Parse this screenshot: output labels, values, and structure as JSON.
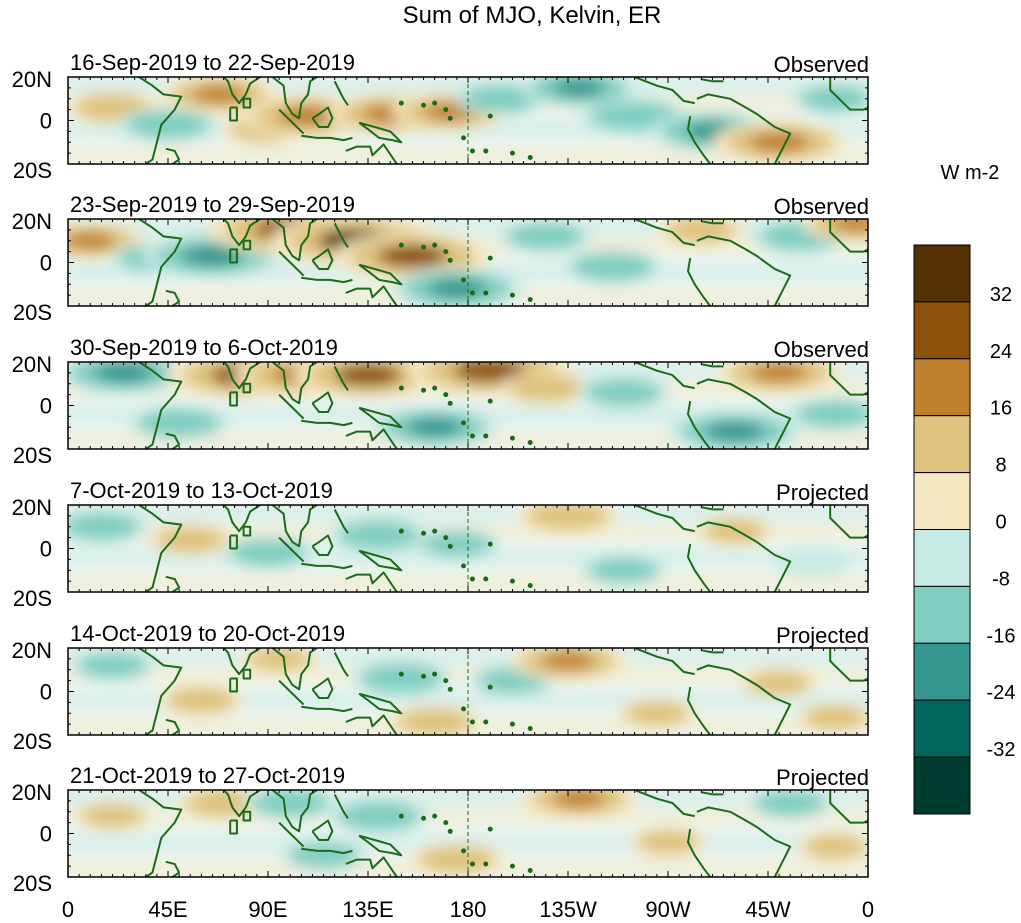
{
  "chart_data": {
    "type": "heatmap",
    "title": "Sum of MJO, Kelvin, ER",
    "xlabel": "",
    "ylabel": "",
    "x_ticks": [
      "0",
      "45E",
      "90E",
      "135E",
      "180",
      "135W",
      "90W",
      "45W",
      "0"
    ],
    "x_tick_degrees": [
      0,
      45,
      90,
      135,
      180,
      225,
      270,
      315,
      360
    ],
    "xlim_degrees_east": [
      0,
      360
    ],
    "y_ticks": [
      "20N",
      "0",
      "20S"
    ],
    "y_tick_degrees": [
      20,
      0,
      -20
    ],
    "ylim_degrees": [
      -20,
      20
    ],
    "grid": false,
    "dashed_reference_line_degrees_east": 180,
    "colorbar": {
      "units_label": "W m-2",
      "tick_labels": [
        "32",
        "24",
        "16",
        "8",
        "0",
        "-8",
        "-16",
        "-24",
        "-32"
      ],
      "levels": [
        32,
        24,
        16,
        8,
        0,
        -8,
        -16,
        -24,
        -32
      ],
      "bin_colors": [
        "#543005",
        "#8c510a",
        "#bf812d",
        "#dfc27d",
        "#f6e8c3",
        "#c7eae5",
        "#80cdc1",
        "#35978f",
        "#01665e",
        "#003c30"
      ],
      "legend_position": "right"
    },
    "coast_color": "#1a6b1a",
    "panels": [
      {
        "date_range": "16-Sep-2019 to 22-Sep-2019",
        "status": "Observed",
        "anomalies": [
          {
            "lon": 20,
            "lat": 6,
            "value": 12
          },
          {
            "lon": 45,
            "lat": -2,
            "value": -14
          },
          {
            "lon": 68,
            "lat": 12,
            "value": 18
          },
          {
            "lon": 88,
            "lat": -4,
            "value": 10
          },
          {
            "lon": 108,
            "lat": 2,
            "value": 22
          },
          {
            "lon": 145,
            "lat": 3,
            "value": 20
          },
          {
            "lon": 172,
            "lat": 4,
            "value": 18
          },
          {
            "lon": 195,
            "lat": 10,
            "value": -12
          },
          {
            "lon": 230,
            "lat": 15,
            "value": -18
          },
          {
            "lon": 255,
            "lat": 2,
            "value": -16
          },
          {
            "lon": 290,
            "lat": -5,
            "value": -20
          },
          {
            "lon": 320,
            "lat": -10,
            "value": 22
          },
          {
            "lon": 345,
            "lat": 10,
            "value": -10
          }
        ]
      },
      {
        "date_range": "23-Sep-2019 to 29-Sep-2019",
        "status": "Observed",
        "anomalies": [
          {
            "lon": 10,
            "lat": 10,
            "value": 16
          },
          {
            "lon": 40,
            "lat": 2,
            "value": -12
          },
          {
            "lon": 65,
            "lat": 3,
            "value": -24
          },
          {
            "lon": 100,
            "lat": 15,
            "value": 30
          },
          {
            "lon": 130,
            "lat": 10,
            "value": 32
          },
          {
            "lon": 155,
            "lat": 3,
            "value": 28
          },
          {
            "lon": 175,
            "lat": -12,
            "value": -22
          },
          {
            "lon": 215,
            "lat": 12,
            "value": -12
          },
          {
            "lon": 245,
            "lat": -2,
            "value": -14
          },
          {
            "lon": 285,
            "lat": 15,
            "value": 10
          },
          {
            "lon": 330,
            "lat": 12,
            "value": -14
          },
          {
            "lon": 355,
            "lat": 18,
            "value": 16
          }
        ]
      },
      {
        "date_range": "30-Sep-2019 to 6-Oct-2019",
        "status": "Observed",
        "anomalies": [
          {
            "lon": 25,
            "lat": 15,
            "value": -22
          },
          {
            "lon": 50,
            "lat": -8,
            "value": -14
          },
          {
            "lon": 80,
            "lat": 14,
            "value": 28
          },
          {
            "lon": 105,
            "lat": 14,
            "value": 22
          },
          {
            "lon": 135,
            "lat": 14,
            "value": 26
          },
          {
            "lon": 165,
            "lat": -10,
            "value": -20
          },
          {
            "lon": 190,
            "lat": 16,
            "value": 30
          },
          {
            "lon": 215,
            "lat": 8,
            "value": 12
          },
          {
            "lon": 250,
            "lat": 6,
            "value": -12
          },
          {
            "lon": 300,
            "lat": -12,
            "value": -22
          },
          {
            "lon": 320,
            "lat": 15,
            "value": 20
          },
          {
            "lon": 345,
            "lat": -4,
            "value": -12
          }
        ]
      },
      {
        "date_range": "7-Oct-2019 to 13-Oct-2019",
        "status": "Projected",
        "anomalies": [
          {
            "lon": 15,
            "lat": 10,
            "value": -12
          },
          {
            "lon": 55,
            "lat": 4,
            "value": 10
          },
          {
            "lon": 90,
            "lat": -2,
            "value": -12
          },
          {
            "lon": 140,
            "lat": 6,
            "value": -14
          },
          {
            "lon": 175,
            "lat": 2,
            "value": -10
          },
          {
            "lon": 225,
            "lat": 15,
            "value": 14
          },
          {
            "lon": 250,
            "lat": -10,
            "value": -10
          },
          {
            "lon": 300,
            "lat": 8,
            "value": 8
          },
          {
            "lon": 335,
            "lat": -6,
            "value": -8
          }
        ]
      },
      {
        "date_range": "14-Oct-2019 to 20-Oct-2019",
        "status": "Projected",
        "anomalies": [
          {
            "lon": 20,
            "lat": 12,
            "value": -10
          },
          {
            "lon": 60,
            "lat": -4,
            "value": 10
          },
          {
            "lon": 95,
            "lat": 15,
            "value": 8
          },
          {
            "lon": 150,
            "lat": 6,
            "value": -14
          },
          {
            "lon": 165,
            "lat": -14,
            "value": 12
          },
          {
            "lon": 200,
            "lat": 5,
            "value": -10
          },
          {
            "lon": 225,
            "lat": 14,
            "value": 18
          },
          {
            "lon": 265,
            "lat": -10,
            "value": 8
          },
          {
            "lon": 320,
            "lat": 4,
            "value": 8
          },
          {
            "lon": 345,
            "lat": -12,
            "value": 8
          }
        ]
      },
      {
        "date_range": "21-Oct-2019 to 27-Oct-2019",
        "status": "Projected",
        "anomalies": [
          {
            "lon": 20,
            "lat": 8,
            "value": 8
          },
          {
            "lon": 70,
            "lat": 14,
            "value": 12
          },
          {
            "lon": 100,
            "lat": 14,
            "value": -12
          },
          {
            "lon": 115,
            "lat": -10,
            "value": -10
          },
          {
            "lon": 140,
            "lat": 8,
            "value": -14
          },
          {
            "lon": 175,
            "lat": -12,
            "value": 12
          },
          {
            "lon": 230,
            "lat": 16,
            "value": 18
          },
          {
            "lon": 270,
            "lat": -4,
            "value": 8
          },
          {
            "lon": 325,
            "lat": 14,
            "value": -10
          },
          {
            "lon": 345,
            "lat": -6,
            "value": 8
          }
        ]
      }
    ]
  }
}
